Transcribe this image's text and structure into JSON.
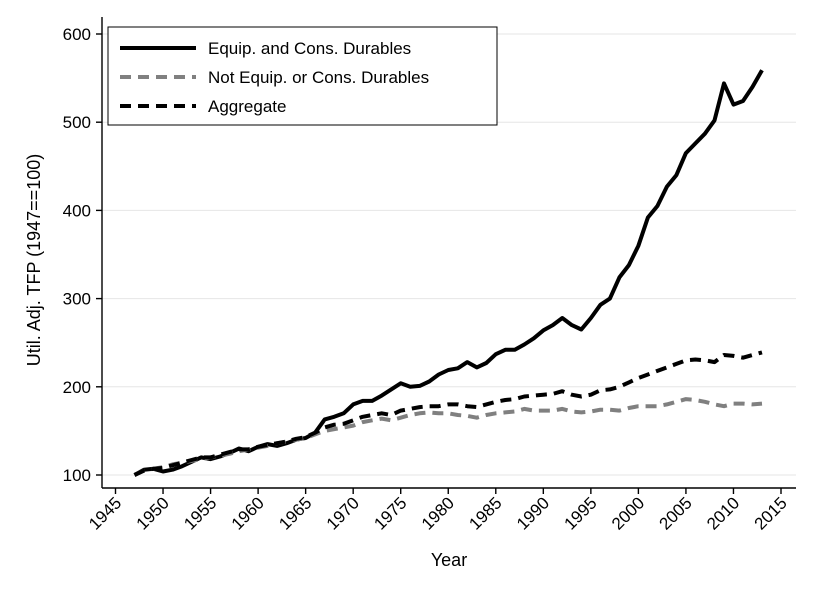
{
  "chart_data": {
    "type": "line",
    "title": "",
    "xlabel": "Year",
    "ylabel": "Util. Adj. TFP (1947==100)",
    "xlim": [
      1945,
      2015
    ],
    "ylim": [
      100,
      600
    ],
    "xticks": [
      1945,
      1950,
      1955,
      1960,
      1965,
      1970,
      1975,
      1980,
      1985,
      1990,
      1995,
      2000,
      2005,
      2010,
      2015
    ],
    "yticks": [
      100,
      200,
      300,
      400,
      500,
      600
    ],
    "grid": "horizontal",
    "legend_position": "top-left",
    "series": [
      {
        "name": "Equip. and Cons. Durables",
        "color": "#000000",
        "style": "solid",
        "x": [
          1947,
          1948,
          1949,
          1950,
          1951,
          1952,
          1953,
          1954,
          1955,
          1956,
          1957,
          1958,
          1959,
          1960,
          1961,
          1962,
          1963,
          1964,
          1965,
          1966,
          1967,
          1968,
          1969,
          1970,
          1971,
          1972,
          1973,
          1974,
          1975,
          1976,
          1977,
          1978,
          1979,
          1980,
          1981,
          1982,
          1983,
          1984,
          1985,
          1986,
          1987,
          1988,
          1989,
          1990,
          1991,
          1992,
          1993,
          1994,
          1995,
          1996,
          1997,
          1998,
          1999,
          2000,
          2001,
          2002,
          2003,
          2004,
          2005,
          2006,
          2007,
          2008,
          2009,
          2010,
          2011,
          2012,
          2013
        ],
        "y": [
          100,
          106,
          107,
          104,
          106,
          110,
          115,
          120,
          118,
          121,
          125,
          130,
          127,
          132,
          135,
          133,
          136,
          140,
          142,
          148,
          163,
          166,
          170,
          180,
          184,
          184,
          190,
          197,
          204,
          200,
          201,
          206,
          214,
          219,
          221,
          228,
          222,
          227,
          237,
          242,
          242,
          248,
          255,
          264,
          270,
          278,
          270,
          265,
          278,
          293,
          300,
          324,
          338,
          360,
          392,
          405,
          427,
          440,
          465,
          476,
          487,
          502,
          544,
          520,
          524,
          540,
          559
        ]
      },
      {
        "name": "Not Equip. or Cons. Durables",
        "color": "#808080",
        "style": "dashed",
        "x": [
          1947,
          1948,
          1949,
          1950,
          1951,
          1952,
          1953,
          1954,
          1955,
          1956,
          1957,
          1958,
          1959,
          1960,
          1961,
          1962,
          1963,
          1964,
          1965,
          1966,
          1967,
          1968,
          1969,
          1970,
          1971,
          1972,
          1973,
          1974,
          1975,
          1976,
          1977,
          1978,
          1979,
          1980,
          1981,
          1982,
          1983,
          1984,
          1985,
          1986,
          1987,
          1988,
          1989,
          1990,
          1991,
          1992,
          1993,
          1994,
          1995,
          1996,
          1997,
          1998,
          1999,
          2000,
          2001,
          2002,
          2003,
          2004,
          2005,
          2006,
          2007,
          2008,
          2009,
          2010,
          2011,
          2012,
          2013
        ],
        "y": [
          100,
          105,
          107,
          109,
          112,
          114,
          116,
          118,
          120,
          122,
          124,
          127,
          129,
          131,
          133,
          136,
          138,
          140,
          142,
          146,
          150,
          152,
          154,
          156,
          160,
          162,
          164,
          162,
          165,
          168,
          170,
          171,
          170,
          170,
          168,
          167,
          165,
          168,
          170,
          171,
          172,
          175,
          173,
          173,
          173,
          175,
          172,
          171,
          172,
          174,
          174,
          173,
          176,
          178,
          178,
          178,
          180,
          183,
          186,
          185,
          183,
          180,
          178,
          181,
          181,
          180,
          181
        ]
      },
      {
        "name": "Aggregate",
        "color": "#000000",
        "style": "dashed",
        "x": [
          1947,
          1948,
          1949,
          1950,
          1951,
          1952,
          1953,
          1954,
          1955,
          1956,
          1957,
          1958,
          1959,
          1960,
          1961,
          1962,
          1963,
          1964,
          1965,
          1966,
          1967,
          1968,
          1969,
          1970,
          1971,
          1972,
          1973,
          1974,
          1975,
          1976,
          1977,
          1978,
          1979,
          1980,
          1981,
          1982,
          1983,
          1984,
          1985,
          1986,
          1987,
          1988,
          1989,
          1990,
          1991,
          1992,
          1993,
          1994,
          1995,
          1996,
          1997,
          1998,
          1999,
          2000,
          2001,
          2002,
          2003,
          2004,
          2005,
          2006,
          2007,
          2008,
          2009,
          2010,
          2011,
          2012,
          2013
        ],
        "y": [
          100,
          105,
          107,
          108,
          111,
          114,
          117,
          120,
          120,
          123,
          126,
          129,
          129,
          132,
          134,
          136,
          138,
          141,
          143,
          148,
          154,
          157,
          158,
          162,
          166,
          168,
          170,
          168,
          173,
          175,
          177,
          178,
          178,
          180,
          180,
          178,
          177,
          180,
          183,
          185,
          186,
          189,
          190,
          191,
          192,
          195,
          191,
          189,
          191,
          196,
          197,
          200,
          205,
          210,
          214,
          218,
          222,
          226,
          230,
          231,
          230,
          228,
          236,
          235,
          233,
          236,
          239
        ]
      }
    ]
  }
}
